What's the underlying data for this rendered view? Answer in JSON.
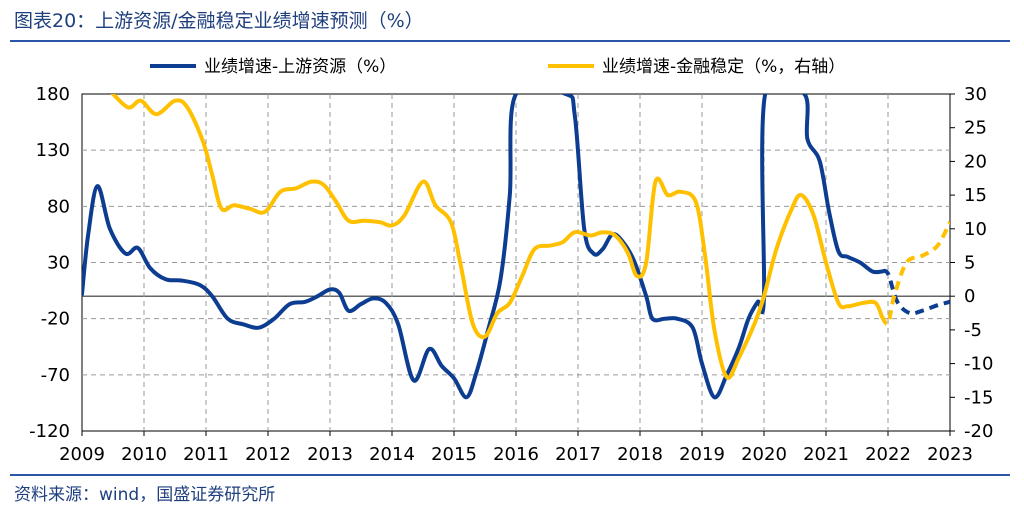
{
  "title": "图表20：上游资源/金融稳定业绩增速预测（%）",
  "source": "资料来源：wind，国盛证券研究所",
  "chart_data": {
    "type": "line",
    "title": "图表20：上游资源/金融稳定业绩增速预测（%）",
    "xlabel": "",
    "ylabel": "",
    "x_ticks": [
      "2009",
      "2010",
      "2011",
      "2012",
      "2013",
      "2014",
      "2015",
      "2016",
      "2017",
      "2018",
      "2019",
      "2020",
      "2021",
      "2022",
      "2023"
    ],
    "xlim": [
      2009,
      2023
    ],
    "ylim_left": [
      -120,
      180
    ],
    "ylim_right": [
      -20,
      30
    ],
    "y_ticks_left": [
      180,
      130,
      80,
      30,
      -20,
      -70,
      -120
    ],
    "y_ticks_right": [
      30,
      25,
      20,
      15,
      10,
      5,
      0,
      -5,
      -10,
      -15,
      -20
    ],
    "grid": true,
    "legend_position": "top",
    "series": [
      {
        "name": "业绩增速-上游资源（%）",
        "axis": "left",
        "color": "#0d3d91",
        "forecast_from": 2021.9,
        "points": [
          [
            2009.0,
            2
          ],
          [
            2009.1,
            55
          ],
          [
            2009.25,
            98
          ],
          [
            2009.45,
            60
          ],
          [
            2009.7,
            38
          ],
          [
            2009.9,
            43
          ],
          [
            2010.1,
            25
          ],
          [
            2010.35,
            15
          ],
          [
            2010.6,
            14
          ],
          [
            2010.9,
            10
          ],
          [
            2011.1,
            0
          ],
          [
            2011.35,
            -20
          ],
          [
            2011.6,
            -25
          ],
          [
            2011.85,
            -28
          ],
          [
            2012.1,
            -20
          ],
          [
            2012.35,
            -7
          ],
          [
            2012.6,
            -5
          ],
          [
            2012.8,
            0
          ],
          [
            2013.0,
            6
          ],
          [
            2013.15,
            3
          ],
          [
            2013.3,
            -13
          ],
          [
            2013.5,
            -7
          ],
          [
            2013.7,
            -2
          ],
          [
            2013.9,
            -6
          ],
          [
            2014.1,
            -25
          ],
          [
            2014.35,
            -75
          ],
          [
            2014.6,
            -47
          ],
          [
            2014.8,
            -62
          ],
          [
            2015.0,
            -73
          ],
          [
            2015.2,
            -90
          ],
          [
            2015.35,
            -70
          ],
          [
            2015.55,
            -30
          ],
          [
            2015.75,
            15
          ],
          [
            2015.9,
            90
          ],
          [
            2016.0,
            180
          ],
          [
            2016.8,
            180
          ],
          [
            2016.95,
            160
          ],
          [
            2017.1,
            60
          ],
          [
            2017.25,
            38
          ],
          [
            2017.4,
            42
          ],
          [
            2017.55,
            55
          ],
          [
            2017.7,
            50
          ],
          [
            2017.9,
            32
          ],
          [
            2018.1,
            0
          ],
          [
            2018.2,
            -20
          ],
          [
            2018.4,
            -20
          ],
          [
            2018.6,
            -20
          ],
          [
            2018.85,
            -28
          ],
          [
            2019.0,
            -60
          ],
          [
            2019.2,
            -90
          ],
          [
            2019.4,
            -70
          ],
          [
            2019.6,
            -45
          ],
          [
            2019.75,
            -20
          ],
          [
            2019.9,
            -5
          ],
          [
            2020.0,
            0
          ],
          [
            2020.02,
            180
          ],
          [
            2020.65,
            180
          ],
          [
            2020.7,
            140
          ],
          [
            2020.9,
            120
          ],
          [
            2021.05,
            75
          ],
          [
            2021.2,
            40
          ],
          [
            2021.35,
            35
          ],
          [
            2021.55,
            30
          ],
          [
            2021.75,
            22
          ],
          [
            2021.9,
            22
          ],
          [
            2022.0,
            20
          ],
          [
            2022.15,
            -5
          ],
          [
            2022.35,
            -15
          ],
          [
            2022.55,
            -13
          ],
          [
            2022.8,
            -8
          ],
          [
            2023.0,
            -5
          ]
        ]
      },
      {
        "name": "业绩增速-金融稳定（%，右轴）",
        "axis": "right",
        "color": "#ffc000",
        "forecast_from": 2021.9,
        "points": [
          [
            2009.5,
            30
          ],
          [
            2009.75,
            28
          ],
          [
            2009.95,
            29
          ],
          [
            2010.2,
            27
          ],
          [
            2010.5,
            29
          ],
          [
            2010.7,
            28
          ],
          [
            2010.95,
            23
          ],
          [
            2011.1,
            18
          ],
          [
            2011.25,
            13
          ],
          [
            2011.45,
            13.5
          ],
          [
            2011.7,
            13
          ],
          [
            2011.95,
            12.5
          ],
          [
            2012.2,
            15.5
          ],
          [
            2012.45,
            16
          ],
          [
            2012.7,
            17
          ],
          [
            2012.9,
            16.5
          ],
          [
            2013.1,
            14
          ],
          [
            2013.3,
            11.2
          ],
          [
            2013.55,
            11.2
          ],
          [
            2013.8,
            11
          ],
          [
            2014.0,
            10.5
          ],
          [
            2014.2,
            12
          ],
          [
            2014.5,
            17
          ],
          [
            2014.7,
            13.5
          ],
          [
            2014.95,
            11
          ],
          [
            2015.1,
            5
          ],
          [
            2015.3,
            -4
          ],
          [
            2015.5,
            -6
          ],
          [
            2015.7,
            -2.5
          ],
          [
            2015.9,
            -1
          ],
          [
            2016.1,
            3
          ],
          [
            2016.3,
            7
          ],
          [
            2016.55,
            7.5
          ],
          [
            2016.75,
            8
          ],
          [
            2016.95,
            9.5
          ],
          [
            2017.2,
            9
          ],
          [
            2017.4,
            9.5
          ],
          [
            2017.6,
            9
          ],
          [
            2017.8,
            6.5
          ],
          [
            2017.95,
            3
          ],
          [
            2018.1,
            5
          ],
          [
            2018.25,
            17
          ],
          [
            2018.45,
            15
          ],
          [
            2018.65,
            15.5
          ],
          [
            2018.9,
            14
          ],
          [
            2019.05,
            6
          ],
          [
            2019.2,
            -5
          ],
          [
            2019.4,
            -12
          ],
          [
            2019.6,
            -9
          ],
          [
            2019.85,
            -4
          ],
          [
            2020.0,
            0
          ],
          [
            2020.2,
            7
          ],
          [
            2020.45,
            13
          ],
          [
            2020.6,
            15
          ],
          [
            2020.8,
            12
          ],
          [
            2021.0,
            5
          ],
          [
            2021.2,
            -1
          ],
          [
            2021.35,
            -1.5
          ],
          [
            2021.6,
            -1
          ],
          [
            2021.8,
            -1
          ],
          [
            2021.9,
            -3
          ],
          [
            2022.0,
            -4
          ],
          [
            2022.1,
            0
          ],
          [
            2022.3,
            5
          ],
          [
            2022.55,
            6
          ],
          [
            2022.8,
            7.5
          ],
          [
            2023.0,
            11
          ]
        ]
      }
    ]
  }
}
